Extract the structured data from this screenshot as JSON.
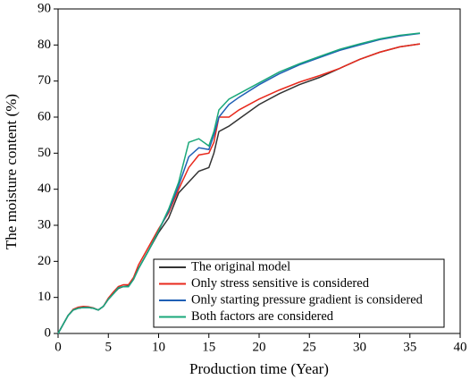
{
  "chart_data": {
    "type": "line",
    "x_label": "Production time (Year)",
    "y_label": "The moisture content (%)",
    "x": [
      0,
      0.5,
      1,
      1.5,
      2,
      2.5,
      3,
      3.5,
      4,
      4.5,
      5,
      5.5,
      6,
      6.5,
      7,
      7.5,
      8,
      9,
      10,
      11,
      12,
      13,
      14,
      15,
      15.5,
      16,
      17,
      18,
      20,
      22,
      24,
      26,
      28,
      30,
      32,
      34,
      36
    ],
    "series": [
      {
        "name": "The original model",
        "color": "#333333",
        "values": [
          0,
          2.5,
          5,
          6.5,
          7,
          7.2,
          7.2,
          7,
          6.5,
          7.5,
          9.5,
          11,
          12.5,
          13,
          13.2,
          15,
          18,
          23,
          28,
          32,
          39,
          42,
          45,
          46,
          50,
          56,
          57.5,
          59.5,
          63.5,
          66.5,
          69,
          71,
          73.5,
          76,
          78,
          79.5,
          80.3
        ]
      },
      {
        "name": "Only stress sensitive is considered",
        "color": "#e8291c",
        "values": [
          0,
          2.5,
          5,
          6.7,
          7.3,
          7.5,
          7.4,
          7.1,
          6.5,
          7.5,
          9.8,
          11.5,
          13,
          13.5,
          13.5,
          15.5,
          19,
          24,
          29,
          33.5,
          40,
          46,
          49.5,
          50,
          53,
          60,
          60,
          62,
          65,
          67.5,
          69.7,
          71.5,
          73.5,
          76,
          78,
          79.5,
          80.3
        ]
      },
      {
        "name": "Only starting pressure gradient is considered",
        "color": "#1f5fb5",
        "values": [
          0,
          2.5,
          5,
          6.5,
          7,
          7.2,
          7.2,
          7,
          6.5,
          7.5,
          9.5,
          11,
          12.7,
          13,
          13,
          15,
          18,
          23,
          28.5,
          34,
          41,
          49,
          51.5,
          51,
          55,
          60,
          63.5,
          65.5,
          69,
          72,
          74.5,
          76.5,
          78.5,
          80,
          81.5,
          82.5,
          83.2
        ]
      },
      {
        "name": "Both factors are considered",
        "color": "#1aa87a",
        "values": [
          0,
          2.5,
          5,
          6.5,
          7,
          7.2,
          7.2,
          7,
          6.5,
          7.5,
          9.5,
          11,
          12.7,
          13,
          13,
          15,
          18,
          23,
          28.5,
          34.5,
          42,
          53,
          54,
          52,
          56,
          62,
          65,
          66.5,
          69.5,
          72.5,
          74.8,
          76.8,
          78.8,
          80.3,
          81.7,
          82.7,
          83.3
        ]
      }
    ],
    "xlim": [
      0,
      40
    ],
    "xticks": [
      0,
      5,
      10,
      15,
      20,
      25,
      30,
      35,
      40
    ],
    "ylim": [
      0,
      90
    ],
    "yticks": [
      0,
      10,
      20,
      30,
      40,
      50,
      60,
      70,
      80,
      90
    ],
    "legend": "lower right"
  }
}
